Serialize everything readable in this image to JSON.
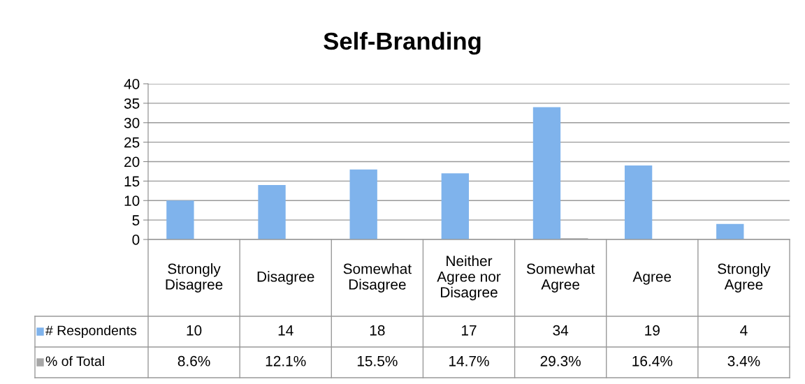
{
  "chart_data": {
    "type": "bar",
    "title": "Self-Branding",
    "categories": [
      "Strongly\nDisagree",
      "Disagree",
      "Somewhat\nDisagree",
      "Neither\nAgree nor\nDisagree",
      "Somewhat\nAgree",
      "Agree",
      "Strongly\nAgree"
    ],
    "series": [
      {
        "name": "# Respondents",
        "color": "#7fb3ec",
        "values": [
          10,
          14,
          18,
          17,
          34,
          19,
          4
        ],
        "value_labels": [
          "10",
          "14",
          "18",
          "17",
          "34",
          "19",
          "4"
        ]
      },
      {
        "name": "% of Total",
        "color": "#a6a6a6",
        "values": [
          0.086,
          0.121,
          0.155,
          0.147,
          0.293,
          0.164,
          0.034
        ],
        "value_labels": [
          "8.6%",
          "12.1%",
          "15.5%",
          "14.7%",
          "29.3%",
          "16.4%",
          "3.4%"
        ]
      }
    ],
    "ylim": [
      0,
      40
    ],
    "yticks": [
      0,
      5,
      10,
      15,
      20,
      25,
      30,
      35,
      40
    ],
    "grid": "y",
    "legend": "bottom left"
  }
}
